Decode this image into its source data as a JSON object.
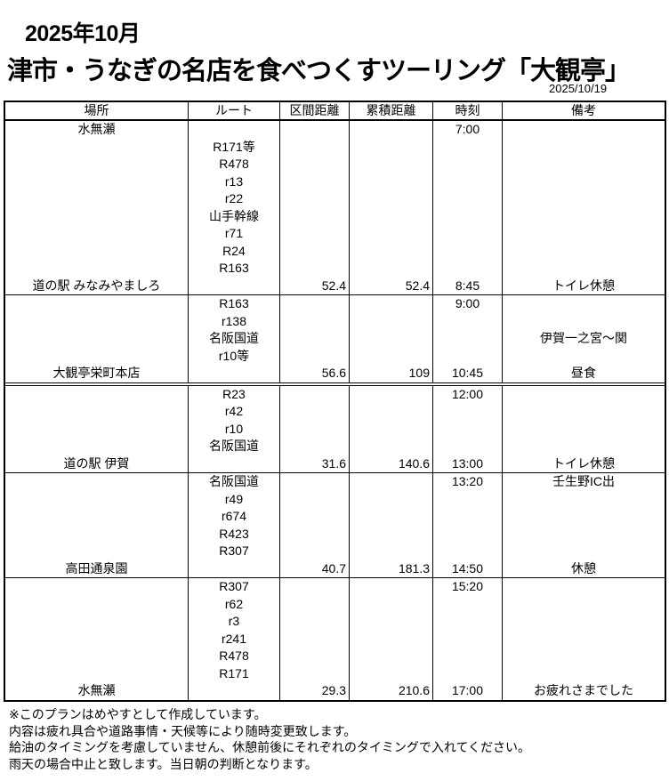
{
  "header": {
    "month": "2025年10月",
    "title": "津市・うなぎの名店を食べつくすツーリング「大観亭」",
    "date": "2025/10/19"
  },
  "table": {
    "columns": [
      "場所",
      "ルート",
      "区間距離",
      "累積距離",
      "時刻",
      "備考"
    ],
    "sections": [
      {
        "lines": 10,
        "place": {
          "0": "水無瀬",
          "9": "道の駅 みなみやましろ"
        },
        "route_start": 1,
        "routes": [
          "R171等",
          "R478",
          "r13",
          "r22",
          "山手幹線",
          "r71",
          "R24",
          "R163"
        ],
        "distance": "52.4",
        "cumulative": "52.4",
        "times": {
          "0": "7:00",
          "9": "8:45"
        },
        "notes": {
          "9": "トイレ休憩"
        }
      },
      {
        "lines": 5,
        "place": {
          "4": "大観亭栄町本店"
        },
        "route_start": 0,
        "routes": [
          "R163",
          "r138",
          "名阪国道",
          "r10等"
        ],
        "distance": "56.6",
        "cumulative": "109",
        "times": {
          "0": "9:00",
          "4": "10:45"
        },
        "notes": {
          "2": "伊賀一之宮～関",
          "4": "昼食"
        }
      },
      {
        "lines": 5,
        "place": {
          "4": "道の駅 伊賀"
        },
        "route_start": 0,
        "routes": [
          "R23",
          "r42",
          "r10",
          "名阪国道"
        ],
        "distance": "31.6",
        "cumulative": "140.6",
        "times": {
          "0": "12:00",
          "4": "13:00"
        },
        "notes": {
          "4": "トイレ休憩"
        }
      },
      {
        "lines": 6,
        "place": {
          "5": "高田通泉園"
        },
        "route_start": 0,
        "routes": [
          "名阪国道",
          "r49",
          "r674",
          "R423",
          "R307"
        ],
        "distance": "40.7",
        "cumulative": "181.3",
        "times": {
          "0": "13:20",
          "5": "14:50"
        },
        "notes": {
          "0": "壬生野IC出",
          "5": "休憩"
        }
      },
      {
        "lines": 7,
        "place": {
          "6": "水無瀬"
        },
        "route_start": 0,
        "routes": [
          "R307",
          "r62",
          "r3",
          "r241",
          "R478",
          "R171"
        ],
        "distance": "29.3",
        "cumulative": "210.6",
        "times": {
          "0": "15:20",
          "6": "17:00"
        },
        "notes": {
          "6": "お疲れさまでした"
        }
      }
    ]
  },
  "footnotes": [
    "※このプランはめやすとして作成しています。",
    "内容は疲れ具合や道路事情・天候等により随時変更致します。",
    "給油のタイミングを考慮していません、休憩前後にそれぞれのタイミングで入れてください。",
    "雨天の場合中止と致します。当日朝の判断となります。"
  ]
}
